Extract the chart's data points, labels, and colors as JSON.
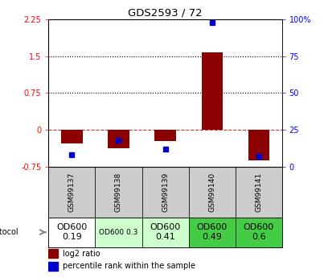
{
  "title": "GDS2593 / 72",
  "samples": [
    "GSM99137",
    "GSM99138",
    "GSM99139",
    "GSM99140",
    "GSM99141"
  ],
  "log2_ratios": [
    -0.28,
    -0.38,
    -0.22,
    1.58,
    -0.62
  ],
  "percentile_ranks": [
    8,
    18,
    12,
    98,
    7
  ],
  "ylim_left": [
    -0.75,
    2.25
  ],
  "ylim_right": [
    0,
    100
  ],
  "hlines": [
    0.75,
    1.5
  ],
  "zero_line": 0,
  "bar_color": "#8B0000",
  "pct_color": "#0000CC",
  "grid_color": "#000000",
  "zero_color": "#cc3333",
  "growth_protocol_labels": [
    "OD600\n0.19",
    "OD600 0.3",
    "OD600\n0.41",
    "OD600\n0.49",
    "OD600\n0.6"
  ],
  "growth_protocol_colors": [
    "#ffffff",
    "#ccffcc",
    "#ccffcc",
    "#44cc44",
    "#44cc44"
  ],
  "growth_protocol_font_sizes": [
    8,
    6.5,
    8,
    8,
    8
  ],
  "left_yticks": [
    -0.75,
    0,
    0.75,
    1.5,
    2.25
  ],
  "right_yticks": [
    0,
    25,
    50,
    75,
    100
  ],
  "right_ytick_labels": [
    "0",
    "25",
    "50",
    "75",
    "100%"
  ],
  "bar_width": 0.45,
  "pct_marker_size": 4.5
}
